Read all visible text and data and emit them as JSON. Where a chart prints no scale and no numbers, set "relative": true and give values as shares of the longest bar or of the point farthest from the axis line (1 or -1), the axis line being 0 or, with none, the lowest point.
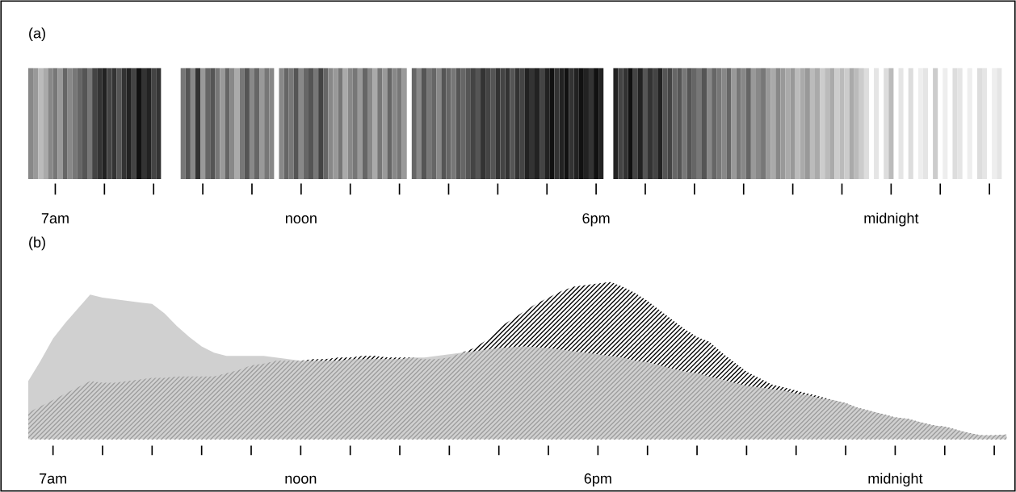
{
  "chart_data": [
    {
      "type": "bar",
      "title": "(a)",
      "relative": true,
      "categories": [
        null,
        null,
        null,
        null,
        null,
        "7am",
        null,
        null,
        null,
        null,
        null,
        null,
        null,
        null,
        null,
        null,
        null,
        null,
        null,
        null,
        null,
        null,
        null,
        null,
        null,
        null,
        null,
        null,
        null,
        null,
        null,
        null,
        null,
        null,
        null,
        null,
        null,
        null,
        null,
        null,
        null,
        null,
        null,
        null,
        null,
        null,
        null,
        null,
        null,
        null,
        null,
        null,
        null,
        null,
        null,
        "noon",
        null,
        null,
        null,
        null,
        null,
        null,
        null,
        null,
        null,
        null,
        null,
        null,
        null,
        null,
        null,
        null,
        null,
        null,
        null,
        null,
        null,
        null,
        null,
        null,
        null,
        null,
        null,
        null,
        null,
        null,
        null,
        null,
        null,
        null,
        null,
        null,
        null,
        null,
        null,
        null,
        null,
        null,
        null,
        null,
        null,
        null,
        null,
        null,
        null,
        null,
        null,
        null,
        null,
        null,
        null,
        null,
        null,
        null,
        null,
        "6pm",
        null,
        null,
        null,
        null,
        null,
        null,
        null,
        null,
        null,
        null,
        null,
        null,
        null,
        null,
        null,
        null,
        null,
        null,
        null,
        null,
        null,
        null,
        null,
        null,
        null,
        null,
        null,
        null,
        null,
        null,
        null,
        null,
        null,
        null,
        null,
        null,
        null,
        null,
        null,
        null,
        null,
        null,
        null,
        null,
        null,
        null,
        null,
        null,
        null,
        null,
        null,
        null,
        null,
        null,
        null,
        null,
        null,
        null,
        null,
        "midnight",
        null,
        null,
        null,
        null,
        null,
        null,
        null,
        null,
        null,
        null,
        null,
        null,
        null,
        null,
        null,
        null,
        null,
        null,
        null,
        null,
        null,
        null,
        null
      ],
      "values": [
        1,
        1,
        1,
        1,
        1,
        1,
        1,
        1,
        1,
        1,
        1,
        1,
        1,
        1,
        1,
        1,
        1,
        1,
        1,
        1,
        1,
        1,
        1,
        1,
        1,
        1,
        1,
        null,
        null,
        null,
        null,
        1,
        1,
        1,
        1,
        1,
        1,
        1,
        1,
        1,
        1,
        1,
        1,
        1,
        1,
        1,
        1,
        1,
        1,
        1,
        null,
        1,
        1,
        1,
        1,
        1,
        1,
        1,
        1,
        1,
        1,
        1,
        1,
        1,
        1,
        1,
        1,
        1,
        1,
        1,
        1,
        1,
        1,
        1,
        1,
        1,
        1,
        null,
        1,
        1,
        1,
        1,
        1,
        1,
        1,
        1,
        1,
        1,
        1,
        1,
        1,
        1,
        1,
        1,
        1,
        1,
        1,
        1,
        1,
        1,
        1,
        1,
        1,
        1,
        1,
        1,
        1,
        1,
        1,
        1,
        1,
        1,
        1,
        1,
        1,
        1,
        1,
        null,
        null,
        1,
        1,
        1,
        1,
        1,
        1,
        1,
        1,
        1,
        1,
        1,
        1,
        1,
        1,
        1,
        1,
        1,
        1,
        1,
        1,
        1,
        1,
        1,
        1,
        1,
        1,
        1,
        1,
        1,
        1,
        1,
        1,
        1,
        1,
        1,
        1,
        1,
        1,
        1,
        1,
        1,
        1,
        1,
        1,
        1,
        1,
        1,
        1,
        1,
        1,
        1,
        1,
        null,
        1,
        null,
        1,
        1,
        null,
        1,
        null,
        1,
        null,
        1,
        1,
        null,
        1,
        null,
        1,
        null,
        1,
        1,
        null,
        1,
        null,
        1,
        1,
        null,
        1,
        1,
        null
      ],
      "colors": [
        "#888888",
        "#999999",
        "#bbbbbb",
        "#aaaaaa",
        "#888888",
        "#777777",
        "#999999",
        "#666666",
        "#888888",
        "#777777",
        "#666666",
        "#555555",
        "#777777",
        "#444444",
        "#333333",
        "#222222",
        "#444444",
        "#333333",
        "#555555",
        "#333333",
        "#222222",
        "#444444",
        "#111111",
        "#333333",
        "#222222",
        "#444444",
        "#333333",
        null,
        null,
        null,
        null,
        "#777777",
        "#555555",
        "#888888",
        "#333333",
        "#999999",
        "#666666",
        "#555555",
        "#777777",
        "#999999",
        "#666666",
        "#888888",
        "#aaaaaa",
        "#777777",
        "#555555",
        "#888888",
        "#666666",
        "#999999",
        "#777777",
        "#888888",
        null,
        "#888888",
        "#666666",
        "#777777",
        "#555555",
        "#888888",
        "#666666",
        "#555555",
        "#777777",
        "#444444",
        "#666666",
        "#888888",
        "#999999",
        "#777777",
        "#aaaaaa",
        "#888888",
        "#777777",
        "#999999",
        "#666666",
        "#888888",
        "#aaaaaa",
        "#777777",
        "#999999",
        "#666666",
        "#888888",
        "#777777",
        "#999999",
        null,
        "#666666",
        "#888888",
        "#555555",
        "#777777",
        "#666666",
        "#888888",
        "#555555",
        "#666666",
        "#777777",
        "#555555",
        "#666666",
        "#555555",
        "#444444",
        "#555555",
        "#333333",
        "#444444",
        "#555555",
        "#333333",
        "#444444",
        "#333333",
        "#555555",
        "#333333",
        "#444444",
        "#222222",
        "#333333",
        "#222222",
        "#444444",
        "#222222",
        "#111111",
        "#333333",
        "#222222",
        "#111111",
        "#333333",
        "#222222",
        "#111111",
        "#222222",
        "#333333",
        "#111111",
        "#222222",
        null,
        null,
        "#222222",
        "#444444",
        "#333333",
        "#111111",
        "#444444",
        "#222222",
        "#555555",
        "#333333",
        "#444444",
        "#222222",
        "#555555",
        "#444444",
        "#666666",
        "#555555",
        "#777777",
        "#555555",
        "#666666",
        "#777777",
        "#555555",
        "#888888",
        "#666666",
        "#777777",
        "#888888",
        "#666666",
        "#999999",
        "#777777",
        "#888888",
        "#666666",
        "#999999",
        "#888888",
        "#777777",
        "#999999",
        "#aaaaaa",
        "#888888",
        "#999999",
        "#aaaaaa",
        "#999999",
        "#bbbbbb",
        "#aaaaaa",
        "#999999",
        "#bbbbbb",
        "#aaaaaa",
        "#cccccc",
        "#bbbbbb",
        "#aaaaaa",
        "#cccccc",
        "#bbbbbb",
        "#cccccc",
        "#aaaaaa",
        "#bbbbbb",
        "#cccccc",
        "#dddddd",
        null,
        "#e5e5e5",
        null,
        "#dddddd",
        "#bbbbbb",
        null,
        "#e5e5e5",
        null,
        "#dddddd",
        null,
        "#eeeeee",
        "#e5e5e5",
        null,
        "#cccccc",
        null,
        "#eeeeee",
        null,
        "#dddddd",
        "#e5e5e5",
        null,
        "#eeeeee",
        null,
        "#dddddd",
        "#e5e5e5",
        null,
        "#eeeeee",
        "#e5e5e5",
        null
      ],
      "grid": false,
      "legend": false
    },
    {
      "type": "area",
      "title": "(b)",
      "relative": true,
      "categories": [
        null,
        null,
        "7am",
        null,
        null,
        null,
        null,
        null,
        null,
        null,
        null,
        null,
        null,
        null,
        null,
        null,
        null,
        null,
        null,
        null,
        null,
        null,
        "noon",
        null,
        null,
        null,
        null,
        null,
        null,
        null,
        null,
        null,
        null,
        null,
        null,
        null,
        null,
        null,
        null,
        null,
        null,
        null,
        null,
        null,
        null,
        null,
        "6pm",
        null,
        null,
        null,
        null,
        null,
        null,
        null,
        null,
        null,
        null,
        null,
        null,
        null,
        null,
        null,
        null,
        null,
        null,
        null,
        null,
        null,
        null,
        null,
        "midnight",
        null,
        null,
        null,
        null,
        null,
        null,
        null,
        null,
        null
      ],
      "series": [
        {
          "color": "#c4c4c4",
          "values": [
            0.37,
            0.5,
            0.64,
            0.74,
            0.83,
            0.92,
            0.9,
            0.89,
            0.88,
            0.87,
            0.86,
            0.8,
            0.72,
            0.65,
            0.59,
            0.55,
            0.53,
            0.53,
            0.53,
            0.53,
            0.52,
            0.51,
            0.5,
            0.5,
            0.5,
            0.5,
            0.51,
            0.51,
            0.51,
            0.51,
            0.51,
            0.52,
            0.52,
            0.53,
            0.54,
            0.55,
            0.56,
            0.57,
            0.58,
            0.585,
            0.59,
            0.585,
            0.58,
            0.57,
            0.56,
            0.55,
            0.54,
            0.53,
            0.52,
            0.5,
            0.49,
            0.47,
            0.45,
            0.43,
            0.42,
            0.4,
            0.38,
            0.36,
            0.34,
            0.33,
            0.32,
            0.31,
            0.29,
            0.28,
            0.26,
            0.25,
            0.23,
            0.2,
            0.18,
            0.16,
            0.14,
            0.13,
            0.11,
            0.09,
            0.08,
            0.06,
            0.04,
            0.026,
            0.026,
            0.03
          ]
        },
        {
          "color": "#000000",
          "values": [
            0.17,
            0.21,
            0.25,
            0.29,
            0.33,
            0.37,
            0.36,
            0.36,
            0.37,
            0.38,
            0.39,
            0.39,
            0.4,
            0.4,
            0.4,
            0.4,
            0.42,
            0.44,
            0.47,
            0.48,
            0.5,
            0.5,
            0.5,
            0.51,
            0.51,
            0.52,
            0.52,
            0.53,
            0.53,
            0.52,
            0.52,
            0.52,
            0.51,
            0.51,
            0.52,
            0.55,
            0.58,
            0.63,
            0.71,
            0.76,
            0.81,
            0.86,
            0.9,
            0.94,
            0.97,
            0.98,
            0.99,
            1.0,
            0.97,
            0.93,
            0.88,
            0.82,
            0.76,
            0.7,
            0.65,
            0.62,
            0.55,
            0.49,
            0.43,
            0.39,
            0.35,
            0.33,
            0.31,
            0.29,
            0.27,
            0.25,
            0.23,
            0.2,
            0.18,
            0.16,
            0.14,
            0.13,
            0.11,
            0.09,
            0.08,
            0.06,
            0.04,
            0.026,
            0.026,
            0.03
          ]
        }
      ],
      "grid": false,
      "legend": false
    }
  ]
}
